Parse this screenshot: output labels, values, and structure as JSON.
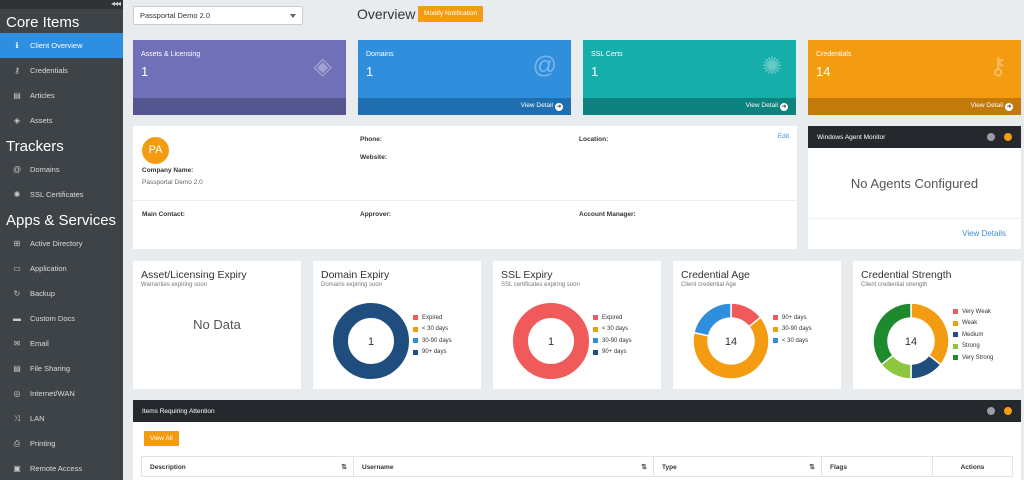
{
  "sidebar": {
    "sections": [
      {
        "title": "Core Items",
        "items": [
          {
            "label": "Client Overview",
            "icon": "info-icon",
            "active": true
          },
          {
            "label": "Credentials",
            "icon": "key-icon"
          },
          {
            "label": "Articles",
            "icon": "file-icon"
          },
          {
            "label": "Assets",
            "icon": "cubes-icon"
          }
        ]
      },
      {
        "title": "Trackers",
        "items": [
          {
            "label": "Domains",
            "icon": "at-icon"
          },
          {
            "label": "SSL Certificates",
            "icon": "gear-icon"
          }
        ]
      },
      {
        "title": "Apps & Services",
        "items": [
          {
            "label": "Active Directory",
            "icon": "windows-icon"
          },
          {
            "label": "Application",
            "icon": "window-icon"
          },
          {
            "label": "Backup",
            "icon": "refresh-icon"
          },
          {
            "label": "Custom Docs",
            "icon": "card-icon"
          },
          {
            "label": "Email",
            "icon": "envelope-icon"
          },
          {
            "label": "File Sharing",
            "icon": "file-icon"
          },
          {
            "label": "Internet/WAN",
            "icon": "globe-icon"
          },
          {
            "label": "LAN",
            "icon": "shuffle-icon"
          },
          {
            "label": "Printing",
            "icon": "printer-icon"
          },
          {
            "label": "Remote Access",
            "icon": "monitor-icon"
          }
        ]
      }
    ]
  },
  "header": {
    "client_select": "Passportal Demo 2.0",
    "title": "Overview",
    "modify_button": "Modify Notification"
  },
  "stats": [
    {
      "label": "Assets & Licensing",
      "value": "1",
      "icon": "cubes-icon",
      "footer": "",
      "color": "#7070b8",
      "footer_color": "#55558f"
    },
    {
      "label": "Domains",
      "value": "1",
      "icon": "at-icon",
      "footer": "View Detail",
      "color": "#2f8fdd",
      "footer_color": "#1f6fb0"
    },
    {
      "label": "SSL Certs",
      "value": "1",
      "icon": "gear-icon",
      "footer": "View Detail",
      "color": "#16aeaa",
      "footer_color": "#0d827f"
    },
    {
      "label": "Credentials",
      "value": "14",
      "icon": "key-icon",
      "footer": "View Detail",
      "color": "#f39c12",
      "footer_color": "#c27a0b"
    }
  ],
  "company": {
    "avatar": "PA",
    "edit_link": "Edit",
    "company_name_label": "Company Name:",
    "company_name": "Passportal Demo 2.0",
    "phone_label": "Phone:",
    "website_label": "Website:",
    "location_label": "Location:",
    "main_contact_label": "Main Contact:",
    "approver_label": "Approver:",
    "account_manager_label": "Account Manager:"
  },
  "agent_monitor": {
    "title": "Windows Agent Monitor",
    "message": "No Agents Configured",
    "link": "View Details"
  },
  "charts": [
    {
      "title": "Asset/Licensing Expiry",
      "subtitle": "Warranties expiring soon",
      "no_data": "No Data"
    },
    {
      "title": "Domain Expiry",
      "subtitle": "Domains expiring soon",
      "center": "1",
      "legend": [
        {
          "label": "Expired",
          "color": "#f05a5a"
        },
        {
          "label": "< 30 days",
          "color": "#f39c12"
        },
        {
          "label": "30-90 days",
          "color": "#2f8fdd"
        },
        {
          "label": "90+ days",
          "color": "#1f4e7e"
        }
      ]
    },
    {
      "title": "SSL Expiry",
      "subtitle": "SSL certificates expiring soon",
      "center": "1",
      "legend": [
        {
          "label": "Expired",
          "color": "#f05a5a"
        },
        {
          "label": "< 30 days",
          "color": "#f39c12"
        },
        {
          "label": "30-90 days",
          "color": "#2f8fdd"
        },
        {
          "label": "90+ days",
          "color": "#1f4e7e"
        }
      ]
    },
    {
      "title": "Credential Age",
      "subtitle": "Client credential Age",
      "center": "14",
      "legend": [
        {
          "label": "90+ days",
          "color": "#f05a5a"
        },
        {
          "label": "30-90 days",
          "color": "#f39c12"
        },
        {
          "label": "< 30 days",
          "color": "#2f8fdd"
        }
      ]
    },
    {
      "title": "Credential Strength",
      "subtitle": "Client credential strength",
      "center": "14",
      "legend": [
        {
          "label": "Very Weak",
          "color": "#f05a5a"
        },
        {
          "label": "Weak",
          "color": "#f39c12"
        },
        {
          "label": "Medium",
          "color": "#1f4e7e"
        },
        {
          "label": "Strong",
          "color": "#8dc63f"
        },
        {
          "label": "Very Strong",
          "color": "#1e8a2e"
        }
      ]
    }
  ],
  "chart_data": [
    {
      "type": "pie",
      "title": "Domain Expiry",
      "labels": [
        "Expired",
        "< 30 days",
        "30-90 days",
        "90+ days"
      ],
      "values": [
        0,
        0,
        0,
        1
      ],
      "total": 1
    },
    {
      "type": "pie",
      "title": "SSL Expiry",
      "labels": [
        "Expired",
        "< 30 days",
        "30-90 days",
        "90+ days"
      ],
      "values": [
        1,
        0,
        0,
        0
      ],
      "total": 1
    },
    {
      "type": "pie",
      "title": "Credential Age",
      "labels": [
        "90+ days",
        "30-90 days",
        "< 30 days"
      ],
      "values": [
        2,
        9,
        3
      ],
      "total": 14
    },
    {
      "type": "pie",
      "title": "Credential Strength",
      "labels": [
        "Very Weak",
        "Weak",
        "Medium",
        "Strong",
        "Very Strong"
      ],
      "values": [
        0,
        5,
        2,
        2,
        5
      ],
      "total": 14
    }
  ],
  "items_attention": {
    "title": "Items Requiring Attention",
    "view_all": "View All",
    "columns": [
      "Description",
      "Username",
      "Type",
      "Flags",
      "Actions"
    ]
  },
  "colors": {
    "accent": "#2e8fe0",
    "orange": "#f39c12",
    "sidebar_bg": "#3e4347",
    "dark_header": "#25292d"
  }
}
